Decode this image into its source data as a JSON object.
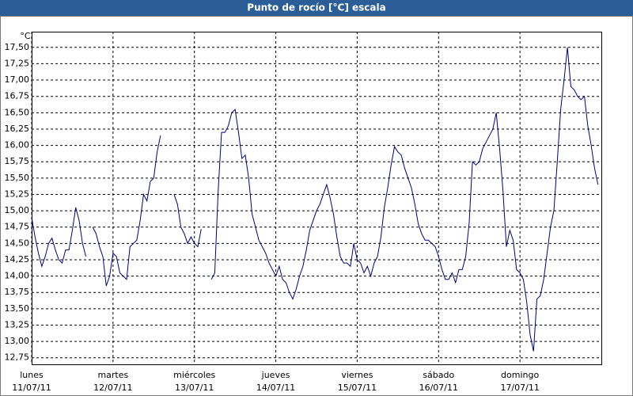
{
  "chart_data": {
    "type": "line",
    "title": "Punto de rocío [°C] escala",
    "y_unit": "°C",
    "color": "#000080",
    "grid": true,
    "xlim": [
      0,
      168
    ],
    "xticks": [
      {
        "value": 0,
        "label": "lunes"
      },
      {
        "value": 24,
        "label": "martes"
      },
      {
        "value": 48,
        "label": "miércoles"
      },
      {
        "value": 72,
        "label": "jueves"
      },
      {
        "value": 96,
        "label": "viernes"
      },
      {
        "value": 120,
        "label": "sábado"
      },
      {
        "value": 144,
        "label": "domingo"
      }
    ],
    "xtick_dates": [
      "11/07/11",
      "12/07/11",
      "13/07/11",
      "14/07/11",
      "15/07/11",
      "16/07/11",
      "17/07/11"
    ],
    "ylim": [
      12.65,
      17.74
    ],
    "yticks": [
      {
        "value": 12.75,
        "label": "12,75"
      },
      {
        "value": 13,
        "label": "13,00"
      },
      {
        "value": 13.25,
        "label": "13,25"
      },
      {
        "value": 13.5,
        "label": "13,50"
      },
      {
        "value": 13.75,
        "label": "13,75"
      },
      {
        "value": 14,
        "label": "14,00"
      },
      {
        "value": 14.25,
        "label": "14,25"
      },
      {
        "value": 14.5,
        "label": "14,50"
      },
      {
        "value": 14.75,
        "label": "14,75"
      },
      {
        "value": 15,
        "label": "15,00"
      },
      {
        "value": 15.25,
        "label": "15,25"
      },
      {
        "value": 15.5,
        "label": "15,50"
      },
      {
        "value": 15.75,
        "label": "15,75"
      },
      {
        "value": 16,
        "label": "16,00"
      },
      {
        "value": 16.25,
        "label": "16,25"
      },
      {
        "value": 16.5,
        "label": "16,50"
      },
      {
        "value": 16.75,
        "label": "16,75"
      },
      {
        "value": 17,
        "label": "17,00"
      },
      {
        "value": 17.25,
        "label": "17,25"
      },
      {
        "value": 17.5,
        "label": "17,50"
      }
    ],
    "x": [
      0,
      1,
      2,
      3,
      4,
      5,
      6,
      7,
      8,
      9,
      10,
      11,
      12,
      13,
      14,
      15,
      16,
      17,
      18,
      19,
      20,
      21,
      22,
      23,
      24,
      25,
      26,
      27,
      28,
      29,
      30,
      31,
      32,
      33,
      34,
      35,
      36,
      37,
      38,
      39,
      40,
      41,
      42,
      43,
      44,
      45,
      46,
      47,
      48,
      49,
      50,
      51,
      52,
      53,
      54,
      55,
      56,
      57,
      58,
      59,
      60,
      61,
      62,
      63,
      64,
      65,
      66,
      67,
      68,
      69,
      70,
      71,
      72,
      73,
      74,
      75,
      76,
      77,
      78,
      79,
      80,
      81,
      82,
      83,
      84,
      85,
      86,
      87,
      88,
      89,
      90,
      91,
      92,
      93,
      94,
      95,
      96,
      97,
      98,
      99,
      100,
      101,
      102,
      103,
      104,
      105,
      106,
      107,
      108,
      109,
      110,
      111,
      112,
      113,
      114,
      115,
      116,
      117,
      118,
      119,
      120,
      121,
      122,
      123,
      124,
      125,
      126,
      127,
      128,
      129,
      130,
      131,
      132,
      133,
      134,
      135,
      136,
      137,
      138,
      139,
      140,
      141,
      142,
      143,
      144,
      145,
      146,
      147,
      148,
      149,
      150,
      151,
      152,
      153,
      154,
      155,
      156,
      157,
      158,
      159,
      160,
      161,
      162,
      163,
      164,
      165,
      166,
      167
    ],
    "values": [
      14.9,
      14.6,
      14.35,
      14.15,
      14.3,
      14.5,
      14.58,
      14.4,
      14.25,
      14.2,
      14.4,
      14.4,
      14.7,
      15.05,
      14.85,
      14.5,
      14.3,
      null,
      14.75,
      14.65,
      14.45,
      14.3,
      13.85,
      14.0,
      14.35,
      14.3,
      14.05,
      14.0,
      13.95,
      14.45,
      14.5,
      14.55,
      14.85,
      15.25,
      15.15,
      15.45,
      15.5,
      15.9,
      16.15,
      null,
      null,
      null,
      15.25,
      15.1,
      14.75,
      14.65,
      14.5,
      14.6,
      14.5,
      14.45,
      14.72,
      null,
      null,
      13.95,
      14.05,
      15.3,
      16.2,
      16.2,
      16.3,
      16.5,
      16.55,
      16.2,
      15.8,
      15.85,
      15.5,
      14.95,
      14.75,
      14.55,
      14.45,
      14.35,
      14.2,
      14.1,
      14.0,
      14.15,
      13.95,
      13.9,
      13.75,
      13.65,
      13.8,
      14.0,
      14.15,
      14.4,
      14.7,
      14.85,
      15.0,
      15.1,
      15.25,
      15.4,
      15.2,
      14.95,
      14.6,
      14.3,
      14.2,
      14.2,
      14.15,
      14.5,
      14.25,
      14.2,
      14.05,
      14.15,
      14.0,
      14.2,
      14.3,
      14.6,
      15.05,
      15.35,
      15.7,
      15.98,
      15.9,
      15.85,
      15.65,
      15.5,
      15.35,
      15.1,
      14.8,
      14.65,
      14.55,
      14.55,
      14.5,
      14.45,
      14.3,
      14.1,
      13.95,
      13.95,
      14.05,
      13.9,
      14.1,
      14.1,
      14.3,
      14.8,
      15.75,
      15.7,
      15.75,
      15.95,
      16.05,
      16.15,
      16.25,
      16.5,
      15.95,
      15.3,
      14.45,
      14.7,
      14.55,
      14.1,
      14.05,
      13.95,
      13.6,
      13.1,
      12.85,
      13.65,
      13.7,
      13.95,
      14.35,
      14.75,
      15.0,
      15.75,
      16.55,
      17.0,
      17.5,
      16.9,
      16.85,
      16.75,
      16.7,
      16.75,
      16.3,
      16.0,
      15.65,
      15.4
    ]
  }
}
